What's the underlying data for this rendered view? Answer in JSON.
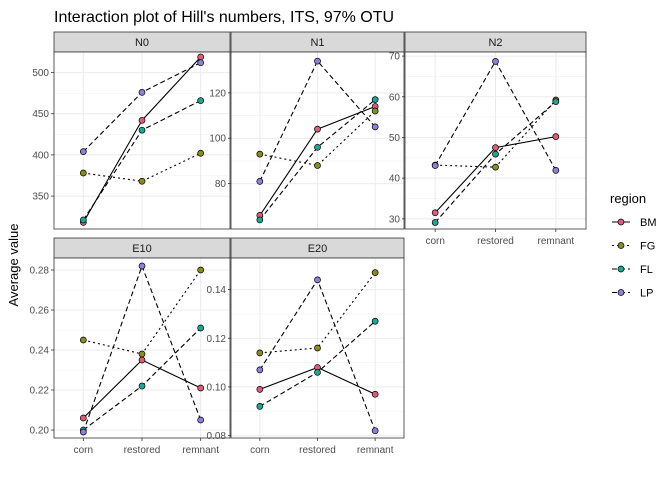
{
  "chart_data": {
    "type": "line",
    "title": "Interaction plot of Hill's numbers, ITS, 97% OTU",
    "ylabel": "Average value",
    "xlabel": "",
    "categories": [
      "corn",
      "restored",
      "remnant"
    ],
    "legend": {
      "title": "region",
      "placement": "right",
      "entries": [
        {
          "name": "BM",
          "color": "#E05A7A",
          "dash": "solid"
        },
        {
          "name": "FG",
          "color": "#8A8C1E",
          "dash": "dotted"
        },
        {
          "name": "FL",
          "color": "#1AA796",
          "dash": "dotted"
        },
        {
          "name": "LP",
          "color": "#8C7FE0",
          "dash": "dashed"
        }
      ]
    },
    "grid": true,
    "panels": [
      {
        "name": "N0",
        "ylim": [
          310,
          525
        ],
        "yticks": [
          350,
          400,
          450,
          500
        ],
        "series": [
          {
            "name": "BM",
            "values": [
              318,
              442,
              519
            ]
          },
          {
            "name": "FG",
            "values": [
              378,
              368,
              402
            ]
          },
          {
            "name": "FL",
            "values": [
              321,
              430,
              466
            ]
          },
          {
            "name": "LP",
            "values": [
              404,
              476,
              512
            ]
          }
        ]
      },
      {
        "name": "N1",
        "ylim": [
          60,
          138
        ],
        "yticks": [
          80,
          100,
          120
        ],
        "series": [
          {
            "name": "BM",
            "values": [
              66,
              104,
              114
            ]
          },
          {
            "name": "FG",
            "values": [
              93,
              88,
              112
            ]
          },
          {
            "name": "FL",
            "values": [
              64,
              96,
              117
            ]
          },
          {
            "name": "LP",
            "values": [
              81,
              134,
              105
            ]
          }
        ]
      },
      {
        "name": "N2",
        "ylim": [
          27.5,
          71
        ],
        "yticks": [
          30,
          40,
          50,
          60,
          70
        ],
        "series": [
          {
            "name": "BM",
            "values": [
              31.5,
              47.5,
              50.2
            ]
          },
          {
            "name": "FG",
            "values": [
              43.2,
              42.7,
              59.2
            ]
          },
          {
            "name": "FL",
            "values": [
              29.1,
              45.9,
              58.8
            ]
          },
          {
            "name": "LP",
            "values": [
              43.1,
              68.7,
              41.9
            ]
          }
        ]
      },
      {
        "name": "E10",
        "ylim": [
          0.196,
          0.286
        ],
        "yticks": [
          0.2,
          0.22,
          0.24,
          0.26,
          0.28
        ],
        "yticklabels": [
          "0.20",
          "0.22",
          "0.24",
          "0.26",
          "0.28"
        ],
        "series": [
          {
            "name": "BM",
            "values": [
              0.206,
              0.235,
              0.221
            ]
          },
          {
            "name": "FG",
            "values": [
              0.245,
              0.238,
              0.28
            ]
          },
          {
            "name": "FL",
            "values": [
              0.2,
              0.222,
              0.251
            ]
          },
          {
            "name": "LP",
            "values": [
              0.199,
              0.282,
              0.205
            ]
          }
        ]
      },
      {
        "name": "E20",
        "ylim": [
          0.079,
          0.153
        ],
        "yticks": [
          0.08,
          0.1,
          0.12,
          0.14
        ],
        "yticklabels": [
          "0.08",
          "0.10",
          "0.12",
          "0.14"
        ],
        "series": [
          {
            "name": "BM",
            "values": [
              0.099,
              0.108,
              0.097
            ]
          },
          {
            "name": "FG",
            "values": [
              0.114,
              0.116,
              0.147
            ]
          },
          {
            "name": "FL",
            "values": [
              0.092,
              0.106,
              0.127
            ]
          },
          {
            "name": "LP",
            "values": [
              0.107,
              0.144,
              0.082
            ]
          }
        ]
      }
    ]
  }
}
